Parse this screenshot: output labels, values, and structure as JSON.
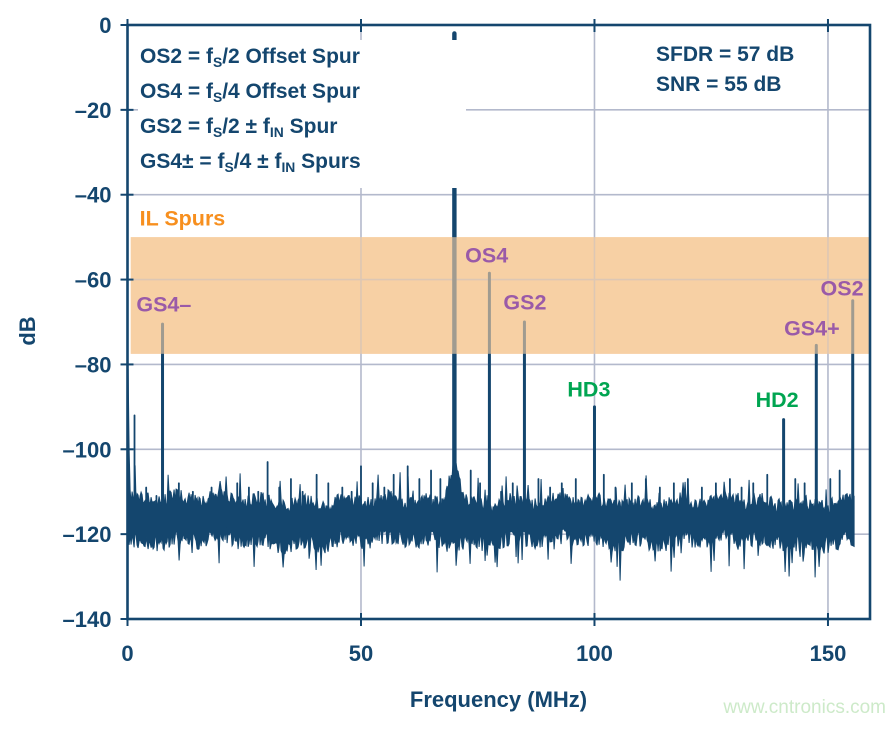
{
  "watermark": {
    "text": "www.cntronics.com"
  },
  "colors": {
    "navy": "#14466e",
    "grid": "#b3b9cc",
    "band": "#f7d0a4",
    "band_overlay": "rgba(247,208,164,0.62)",
    "orange": "#f78f1e",
    "purple": "#9a5aa8",
    "green": "#00a551",
    "watermark_green": "#cdeac9",
    "background": "#ffffff"
  },
  "chart_data": {
    "type": "line",
    "title": "",
    "xlabel": "Frequency (MHz)",
    "ylabel": "dB",
    "xlim": [
      0,
      159
    ],
    "ylim": [
      -140,
      0
    ],
    "grid": "on",
    "x_ticks": {
      "values": [
        0,
        50,
        100,
        150
      ],
      "labels": [
        "0",
        "50",
        "100",
        "150"
      ]
    },
    "y_ticks": {
      "values": [
        0,
        -20,
        -40,
        -60,
        -80,
        -100,
        -120,
        -140
      ],
      "labels": [
        "0",
        "–20",
        "–40",
        "–60",
        "–80",
        "–100",
        "–120",
        "–140"
      ]
    },
    "legend_lines": [
      "OS2 = f~S~/2 Offset Spur",
      "OS4 = f~S~/4 Offset Spur",
      "GS2 = f~S~/2 ± f~IN~ Spur",
      "GS4± = f~S~/4 ± f~IN~ Spurs"
    ],
    "metrics": [
      "SFDR = 57 dB",
      "SNR = 55 dB"
    ],
    "il_band": {
      "label": "IL Spurs",
      "db_top": -50,
      "db_bottom": -77.5,
      "f_from": 0.7,
      "f_to": 159,
      "label_f": 2.6,
      "label_db": -47.2
    },
    "signal": {
      "name": "fundamental",
      "f_mhz": 70,
      "db": -2
    },
    "spurs": [
      {
        "name": "GS4-",
        "f_mhz": 7.5,
        "db": -70.5,
        "label": {
          "text": "GS4–",
          "color": "purple",
          "f": 1.9,
          "db": -67.5
        }
      },
      {
        "name": "OS4",
        "f_mhz": 77.5,
        "db": -58.5,
        "label": {
          "text": "OS4",
          "color": "purple",
          "f": 72.3,
          "db": -56.0
        }
      },
      {
        "name": "GS2",
        "f_mhz": 85,
        "db": -70.0,
        "label": {
          "text": "GS2",
          "color": "purple",
          "f": 80.5,
          "db": -67.0
        }
      },
      {
        "name": "HD3",
        "f_mhz": 100,
        "db": -90.0,
        "label": {
          "text": "HD3",
          "color": "green",
          "f": 94.2,
          "db": -87.5
        }
      },
      {
        "name": "HD2",
        "f_mhz": 140.5,
        "db": -93.0,
        "label": {
          "text": "HD2",
          "color": "green",
          "f": 134.5,
          "db": -90.0
        }
      },
      {
        "name": "GS4+",
        "f_mhz": 147.5,
        "db": -75.5,
        "label": {
          "text": "GS4+",
          "color": "purple",
          "f": 140.6,
          "db": -73.2
        }
      },
      {
        "name": "OS2",
        "f_mhz": 155.3,
        "db": -65.0,
        "label": {
          "text": "OS2",
          "color": "purple",
          "f": 148.4,
          "db": -63.8
        }
      }
    ],
    "minor_spurs": [
      [
        1.5,
        -92
      ],
      [
        4,
        -109
      ],
      [
        6.2,
        -111
      ],
      [
        11,
        -108
      ],
      [
        14,
        -110
      ],
      [
        18,
        -109
      ],
      [
        21,
        -110
      ],
      [
        23.5,
        -108
      ],
      [
        26,
        -109
      ],
      [
        28,
        -110
      ],
      [
        30,
        -103
      ],
      [
        32.5,
        -109
      ],
      [
        35,
        -107
      ],
      [
        37.5,
        -110
      ],
      [
        40.5,
        -106
      ],
      [
        43,
        -108
      ],
      [
        46,
        -109
      ],
      [
        48,
        -110
      ],
      [
        50,
        -104
      ],
      [
        52.5,
        -108
      ],
      [
        55,
        -109
      ],
      [
        57,
        -106
      ],
      [
        60,
        -104
      ],
      [
        62.5,
        -107
      ],
      [
        65,
        -105
      ],
      [
        67,
        -107
      ],
      [
        73.5,
        -105
      ],
      [
        75.5,
        -108
      ],
      [
        80,
        -110
      ],
      [
        82.5,
        -108
      ],
      [
        88,
        -107
      ],
      [
        90.5,
        -109
      ],
      [
        93,
        -108
      ],
      [
        96,
        -107
      ],
      [
        102,
        -106
      ],
      [
        104.5,
        -109
      ],
      [
        108,
        -108
      ],
      [
        111,
        -107
      ],
      [
        114,
        -109
      ],
      [
        117,
        -108
      ],
      [
        120,
        -107
      ],
      [
        123,
        -109
      ],
      [
        126,
        -108
      ],
      [
        129,
        -107
      ],
      [
        131.5,
        -109
      ],
      [
        134,
        -108
      ],
      [
        137,
        -106
      ],
      [
        143,
        -107
      ],
      [
        145,
        -108
      ],
      [
        150.5,
        -107
      ],
      [
        152.5,
        -105
      ]
    ],
    "noise": {
      "floor_db": -117,
      "top_db": -113,
      "bottom_db": -124,
      "f_max": 155.6,
      "seed": 77
    }
  }
}
